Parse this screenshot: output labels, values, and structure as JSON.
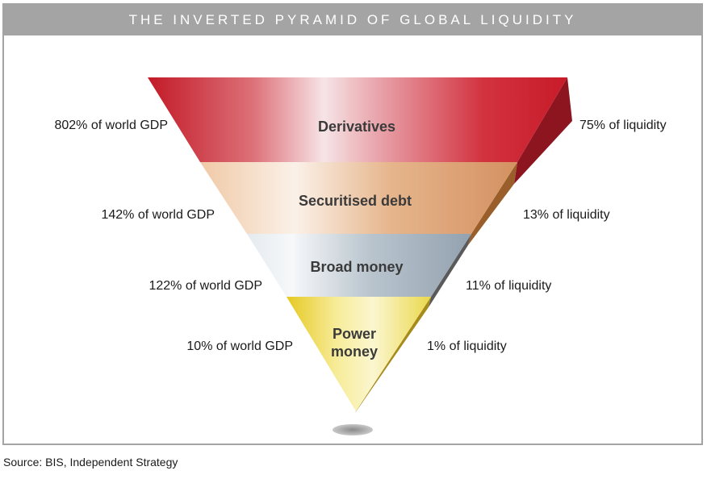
{
  "title": "THE INVERTED PYRAMID OF GLOBAL LIQUIDITY",
  "tiers": [
    {
      "name": "Derivatives",
      "gdp": "802% of world GDP",
      "liquidity": "75% of liquidity"
    },
    {
      "name": "Securitised debt",
      "gdp": "142% of world GDP",
      "liquidity": "13% of liquidity"
    },
    {
      "name": "Broad money",
      "gdp": "122% of world GDP",
      "liquidity": "11% of liquidity"
    },
    {
      "name": "Power money",
      "gdp": "10% of world GDP",
      "liquidity": "1% of liquidity"
    }
  ],
  "source": "Source: BIS, Independent Strategy",
  "colors": {
    "derivatives": "#c8192a",
    "securitised_debt": "#d99a6a",
    "broad_money": "#9eadbb",
    "power_money": "#e8cf2a",
    "frame": "#a4a4a4"
  }
}
